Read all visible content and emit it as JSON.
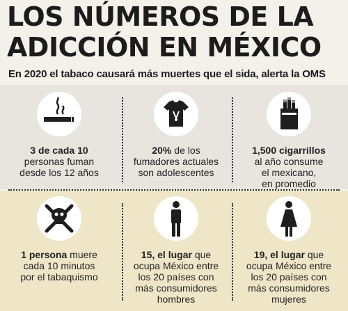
{
  "title_line1": "LOS NÚMEROS DE LA",
  "title_line2": "ADICCIÓN EN MÉXICO",
  "subtitle": "En 2020 el tabaco causará más muertes que el sida, alerta la OMS",
  "stats": [
    {
      "icon": "cigarette-icon",
      "bold": "3 de cada 10",
      "lines": [
        "personas fuman",
        "desde los 12 años"
      ]
    },
    {
      "icon": "tshirt-icon",
      "bold": "20%",
      "rest": " de los",
      "lines": [
        "fumadores actuales",
        "son adolescentes"
      ]
    },
    {
      "icon": "cigarette-pack-icon",
      "bold": "1,500 cigarrillos",
      "lines": [
        "al año consume",
        "el mexicano,",
        "en promedio"
      ]
    },
    {
      "icon": "skull-crossbones-icon",
      "bold": "1 persona",
      "rest": " muere",
      "lines": [
        "cada 10 minutos",
        "por el tabaquismo"
      ]
    },
    {
      "icon": "man-icon",
      "bold": "15, el lugar",
      "rest": " que",
      "lines": [
        "ocupa México entre",
        "los 20 países con",
        "más consumidores",
        "hombres"
      ]
    },
    {
      "icon": "woman-icon",
      "bold": "19, el lugar",
      "rest": " que",
      "lines": [
        "ocupa México entre",
        "los 20 países con",
        "más consumidores",
        "mujeres"
      ]
    }
  ],
  "colors": {
    "top_panel": "#e8e5de",
    "bottom_panel": "#efe6c7",
    "text": "#1e1e1e",
    "icon_bg": "#ffffff"
  }
}
